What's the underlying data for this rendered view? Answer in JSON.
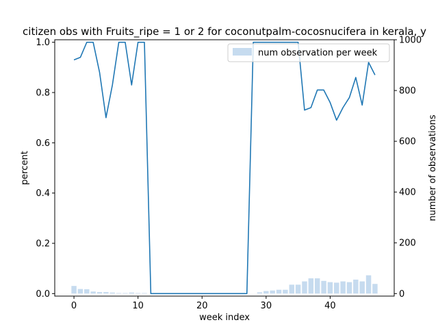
{
  "chart_data": {
    "type": "line",
    "title": "citizen obs with Fruits_ripe = 1 or 2 for coconutpalm-cocosnucifera in kerala, y",
    "xlabel": "week index",
    "ylabel": "percent",
    "y2label": "number of observations",
    "xlim": [
      -3,
      50
    ],
    "ylim": [
      -0.01,
      1.01
    ],
    "y2lim": [
      -10,
      1000
    ],
    "xticks": [
      0,
      10,
      20,
      30,
      40
    ],
    "yticks": [
      0.0,
      0.2,
      0.4,
      0.6,
      0.8,
      1.0
    ],
    "y2ticks": [
      0,
      200,
      400,
      600,
      800,
      1000
    ],
    "grid": false,
    "legend_position": "upper right",
    "line_color": "#1f77b4",
    "bar_color": "#c6dbef",
    "series": [
      {
        "type": "line",
        "axis": "left",
        "x": [
          0,
          1,
          2,
          3,
          4,
          5,
          6,
          7,
          8,
          9,
          10,
          11,
          12,
          13,
          14,
          15,
          16,
          17,
          18,
          19,
          20,
          21,
          22,
          23,
          24,
          25,
          26,
          27,
          28,
          29,
          30,
          31,
          32,
          33,
          34,
          35,
          36,
          37,
          38,
          39,
          40,
          41,
          42,
          43,
          44,
          45,
          46,
          47
        ],
        "values": [
          0.93,
          0.94,
          1.0,
          1.0,
          0.88,
          0.7,
          0.83,
          1.0,
          1.0,
          0.83,
          1.0,
          1.0,
          0.0,
          0.0,
          0.0,
          0.0,
          0.0,
          0.0,
          0.0,
          0.0,
          0.0,
          0.0,
          0.0,
          0.0,
          0.0,
          0.0,
          0.0,
          0.0,
          1.0,
          1.0,
          1.0,
          1.0,
          1.0,
          1.0,
          1.0,
          1.0,
          0.73,
          0.74,
          0.81,
          0.81,
          0.76,
          0.69,
          0.74,
          0.78,
          0.86,
          0.75,
          0.92,
          0.87
        ]
      },
      {
        "type": "bar",
        "axis": "right",
        "name": "num observation per week",
        "x": [
          0,
          1,
          2,
          3,
          4,
          5,
          6,
          7,
          8,
          9,
          10,
          11,
          12,
          13,
          14,
          15,
          16,
          17,
          18,
          19,
          20,
          21,
          22,
          23,
          24,
          25,
          26,
          27,
          28,
          29,
          30,
          31,
          32,
          33,
          34,
          35,
          36,
          37,
          38,
          39,
          40,
          41,
          42,
          43,
          44,
          45,
          46,
          47
        ],
        "values": [
          30,
          18,
          17,
          8,
          6,
          6,
          4,
          2,
          2,
          4,
          2,
          2,
          0,
          0,
          0,
          0,
          0,
          0,
          0,
          0,
          0,
          0,
          0,
          0,
          0,
          0,
          0,
          0,
          0,
          5,
          10,
          12,
          15,
          15,
          35,
          35,
          48,
          60,
          60,
          50,
          45,
          43,
          48,
          45,
          55,
          48,
          72,
          38
        ]
      }
    ]
  }
}
